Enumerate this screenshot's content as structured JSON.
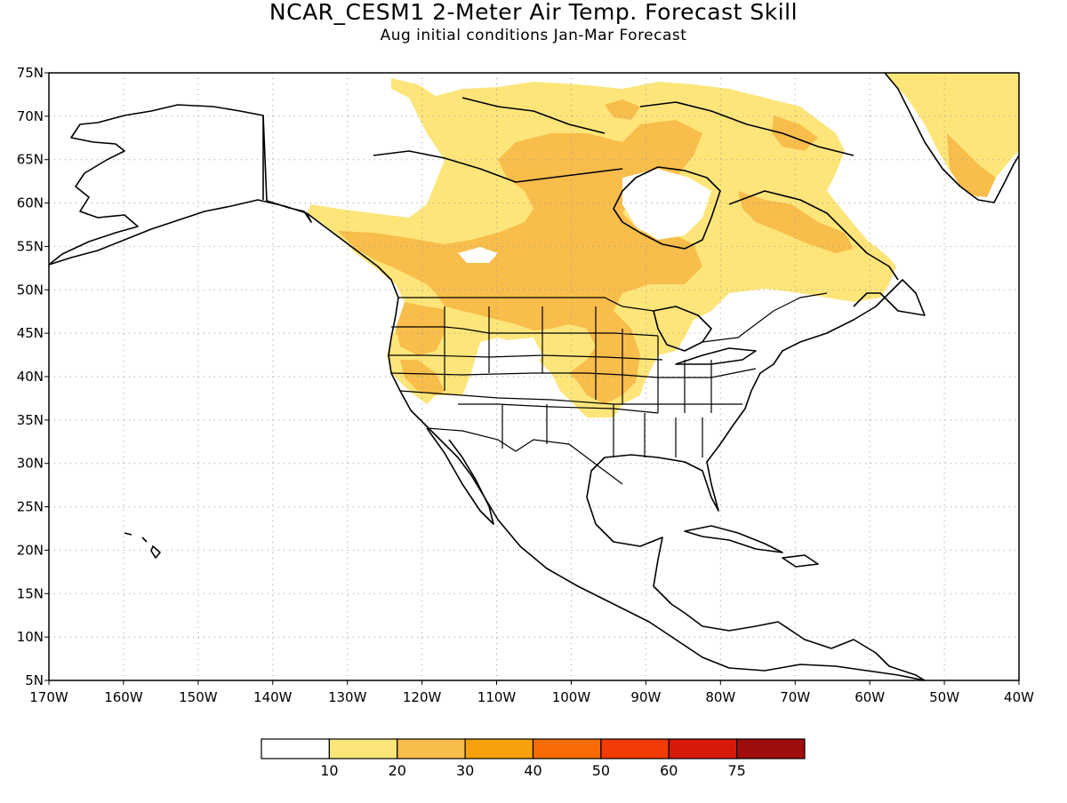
{
  "header": {
    "title": "NCAR_CESM1 2-Meter Air Temp. Forecast Skill",
    "subtitle": "Aug initial conditions  Jan-Mar Forecast"
  },
  "map": {
    "projection": "cylindrical-equidistant",
    "lon_range": [
      -170,
      -40
    ],
    "lat_range": [
      5,
      75
    ],
    "grid": "dotted",
    "lat_labels": [
      "75N",
      "70N",
      "65N",
      "60N",
      "55N",
      "50N",
      "45N",
      "40N",
      "35N",
      "30N",
      "25N",
      "20N",
      "15N",
      "10N",
      "5N"
    ],
    "lon_labels": [
      "170W",
      "160W",
      "150W",
      "140W",
      "130W",
      "120W",
      "110W",
      "100W",
      "90W",
      "80W",
      "70W",
      "60W",
      "50W",
      "40W"
    ],
    "colors": {
      "land_outline": "#000000",
      "grid": "#999999"
    }
  },
  "colorbar": {
    "boundaries": [
      "10",
      "20",
      "30",
      "40",
      "50",
      "60",
      "75"
    ],
    "colors": [
      "#ffffff",
      "#fde57a",
      "#f8bd4a",
      "#f7a20c",
      "#f76b05",
      "#f33b06",
      "#d51a0a",
      "#a00d0d"
    ]
  }
}
